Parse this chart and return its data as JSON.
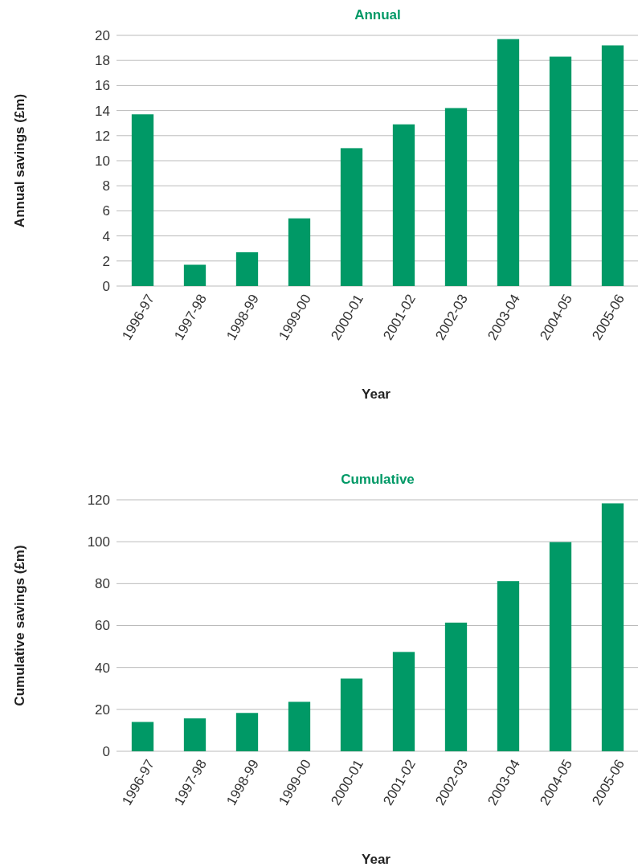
{
  "chart_data": [
    {
      "type": "bar",
      "title": "Annual",
      "xlabel": "Year",
      "ylabel": "Annual savings (£m)",
      "categories": [
        "1996-97",
        "1997-98",
        "1998-99",
        "1999-00",
        "2000-01",
        "2001-02",
        "2002-03",
        "2003-04",
        "2004-05",
        "2005-06"
      ],
      "values": [
        13.7,
        1.7,
        2.7,
        5.4,
        11.0,
        12.9,
        14.2,
        19.7,
        18.3,
        19.2
      ],
      "color": "#009966",
      "ylim": [
        0,
        20
      ],
      "yticks": [
        0,
        2,
        4,
        6,
        8,
        10,
        12,
        14,
        16,
        18,
        20
      ],
      "grid": "y"
    },
    {
      "type": "bar",
      "title": "Cumulative",
      "xlabel": "Year",
      "ylabel": "Cumulative savings (£m)",
      "categories": [
        "1996-97",
        "1997-98",
        "1998-99",
        "1999-00",
        "2000-01",
        "2001-02",
        "2002-03",
        "2003-04",
        "2004-05",
        "2005-06"
      ],
      "values": [
        14.0,
        15.7,
        18.3,
        23.6,
        34.7,
        47.4,
        61.4,
        81.2,
        99.8,
        118.3
      ],
      "color": "#009966",
      "ylim": [
        0,
        120
      ],
      "yticks": [
        0,
        20,
        40,
        60,
        80,
        100,
        120
      ],
      "grid": "y"
    }
  ]
}
